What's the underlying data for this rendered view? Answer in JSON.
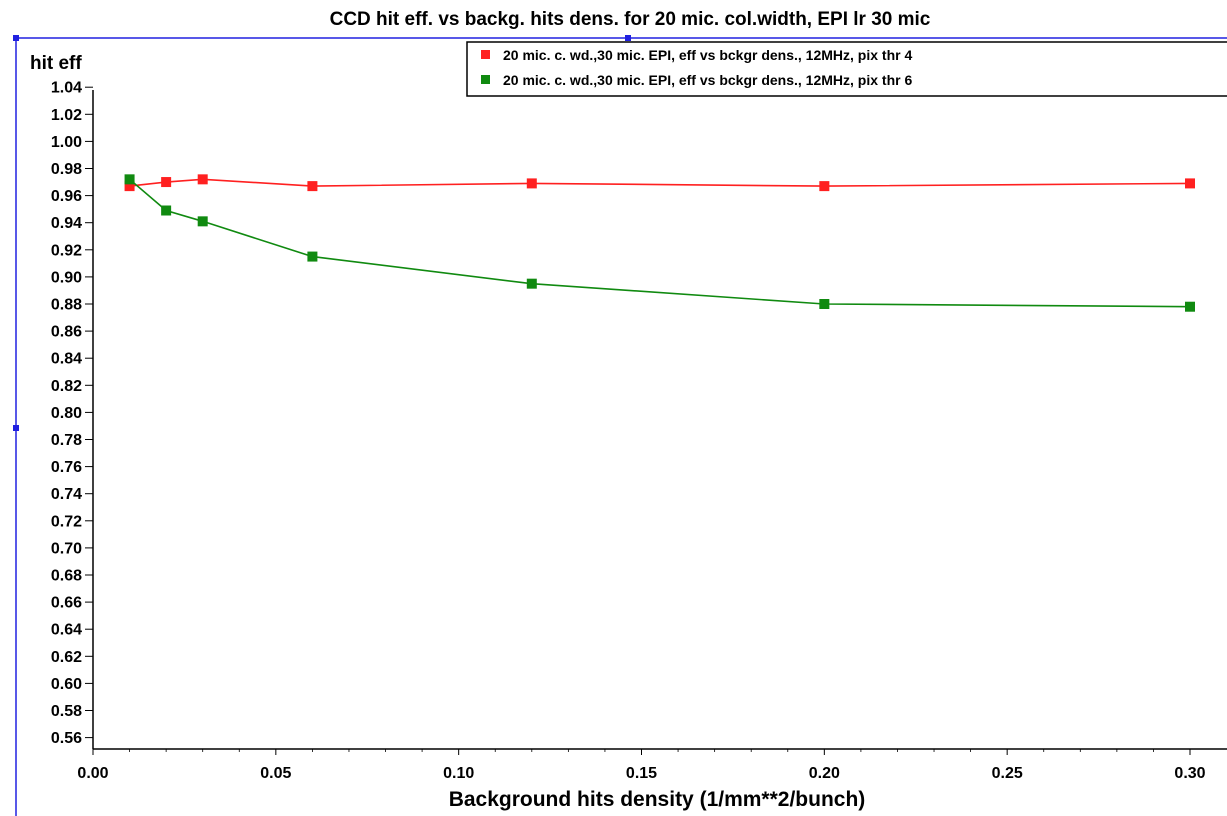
{
  "chart_data": {
    "type": "line",
    "title": "CCD hit eff. vs backg. hits dens. for 20 mic. col.width, EPI lr 30 mic",
    "xlabel": "Background hits density (1/mm**2/bunch)",
    "ylabel": "hit eff",
    "xlim": [
      0.0,
      0.3
    ],
    "ylim": [
      0.55,
      1.05
    ],
    "x_ticks": [
      "0.00",
      "0.05",
      "0.10",
      "0.15",
      "0.20",
      "0.25",
      "0.30"
    ],
    "y_ticks": [
      "0.56",
      "0.58",
      "0.60",
      "0.62",
      "0.64",
      "0.66",
      "0.68",
      "0.70",
      "0.72",
      "0.74",
      "0.76",
      "0.78",
      "0.80",
      "0.82",
      "0.84",
      "0.86",
      "0.88",
      "0.90",
      "0.92",
      "0.94",
      "0.96",
      "0.98",
      "1.00",
      "1.02",
      "1.04"
    ],
    "grid": false,
    "legend_position": "top-right",
    "series": [
      {
        "name": "20 mic. c. wd.,30 mic. EPI, eff vs bckgr dens., 12MHz, pix thr 4",
        "color": "#ff2020",
        "x": [
          0.01,
          0.02,
          0.03,
          0.06,
          0.12,
          0.2,
          0.3
        ],
        "y": [
          0.967,
          0.97,
          0.972,
          0.967,
          0.969,
          0.967,
          0.969
        ]
      },
      {
        "name": "20 mic. c. wd.,30 mic. EPI, eff vs bckgr dens., 12MHz, pix thr 6",
        "color": "#108a10",
        "x": [
          0.01,
          0.02,
          0.03,
          0.06,
          0.12,
          0.2,
          0.3
        ],
        "y": [
          0.972,
          0.949,
          0.941,
          0.915,
          0.895,
          0.88,
          0.878
        ]
      }
    ]
  }
}
